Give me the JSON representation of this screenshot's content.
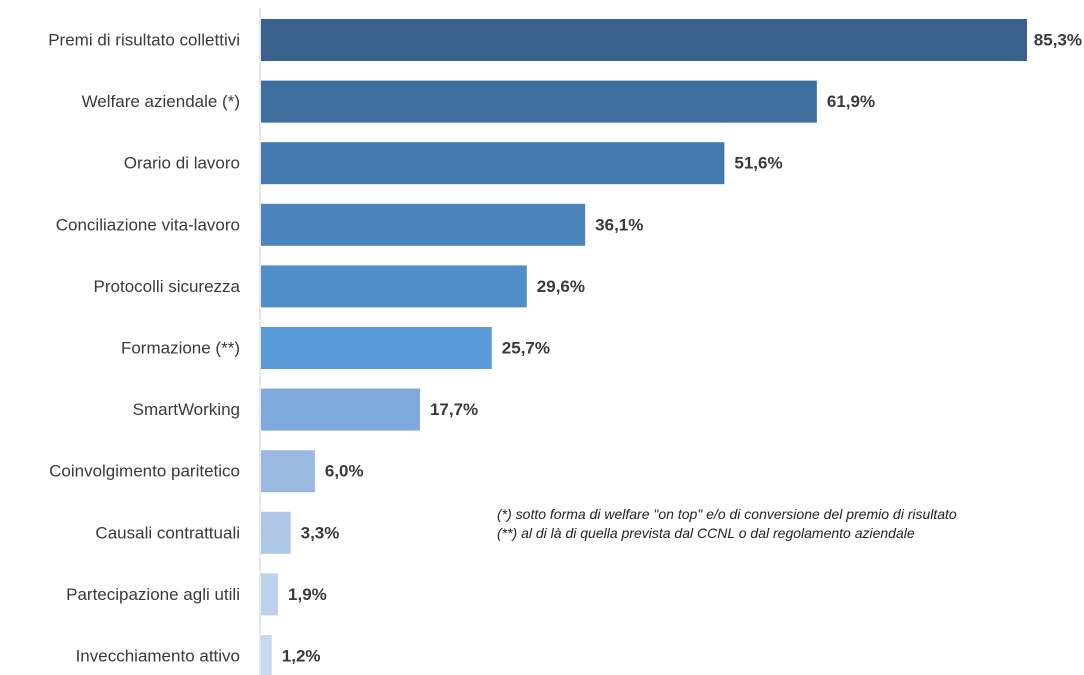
{
  "chart_data": {
    "type": "bar",
    "orientation": "horizontal",
    "categories": [
      "Premi di risultato collettivi",
      "Welfare aziendale (*)",
      "Orario di lavoro",
      "Conciliazione vita-lavoro",
      "Protocolli sicurezza",
      "Formazione (**)",
      "SmartWorking",
      "Coinvolgimento paritetico",
      "Causali contrattuali",
      "Partecipazione agli utili",
      "Invecchiamento attivo"
    ],
    "values": [
      85.3,
      61.9,
      51.6,
      36.1,
      29.6,
      25.7,
      17.7,
      6.0,
      3.3,
      1.9,
      1.2
    ],
    "value_labels": [
      "85,3%",
      "61,9%",
      "51,6%",
      "36,1%",
      "29,6%",
      "25,7%",
      "17,7%",
      "6,0%",
      "3,3%",
      "1,9%",
      "1,2%"
    ],
    "colors": [
      "#3a628c",
      "#3e6f9f",
      "#4479af",
      "#4a86bd",
      "#508fca",
      "#5a9ad9",
      "#7eaadd",
      "#9ab9e0",
      "#aec7e7",
      "#bcd2ec",
      "#c6d9ef"
    ],
    "xlim": [
      0,
      85.3
    ],
    "grid": false,
    "legend": "none",
    "title": "",
    "xlabel": "",
    "ylabel": ""
  },
  "notes": [
    "(*) sotto forma di welfare \"on top\" e/o di conversione del premio di risultato",
    "(**) al di là di quella prevista dal CCNL o dal regolamento aziendale"
  ]
}
